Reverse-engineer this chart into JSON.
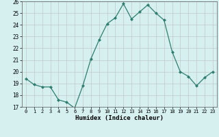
{
  "x": [
    0,
    1,
    2,
    3,
    4,
    5,
    6,
    7,
    8,
    9,
    10,
    11,
    12,
    13,
    14,
    15,
    16,
    17,
    18,
    19,
    20,
    21,
    22,
    23
  ],
  "y": [
    19.4,
    18.9,
    18.7,
    18.7,
    17.6,
    17.4,
    16.9,
    18.8,
    21.1,
    22.7,
    24.1,
    24.6,
    25.8,
    24.5,
    25.1,
    25.7,
    25.0,
    24.4,
    21.7,
    20.0,
    19.6,
    18.8,
    19.5,
    20.0
  ],
  "line_color": "#2e7d6e",
  "marker": "D",
  "marker_size": 2,
  "bg_color": "#d6f0f0",
  "grid_color": "#c0c8c8",
  "xlabel": "Humidex (Indice chaleur)",
  "ylim": [
    17,
    26
  ],
  "xlim": [
    -0.5,
    23.5
  ],
  "yticks": [
    17,
    18,
    19,
    20,
    21,
    22,
    23,
    24,
    25,
    26
  ],
  "xticks": [
    0,
    1,
    2,
    3,
    4,
    5,
    6,
    7,
    8,
    9,
    10,
    11,
    12,
    13,
    14,
    15,
    16,
    17,
    18,
    19,
    20,
    21,
    22,
    23
  ]
}
